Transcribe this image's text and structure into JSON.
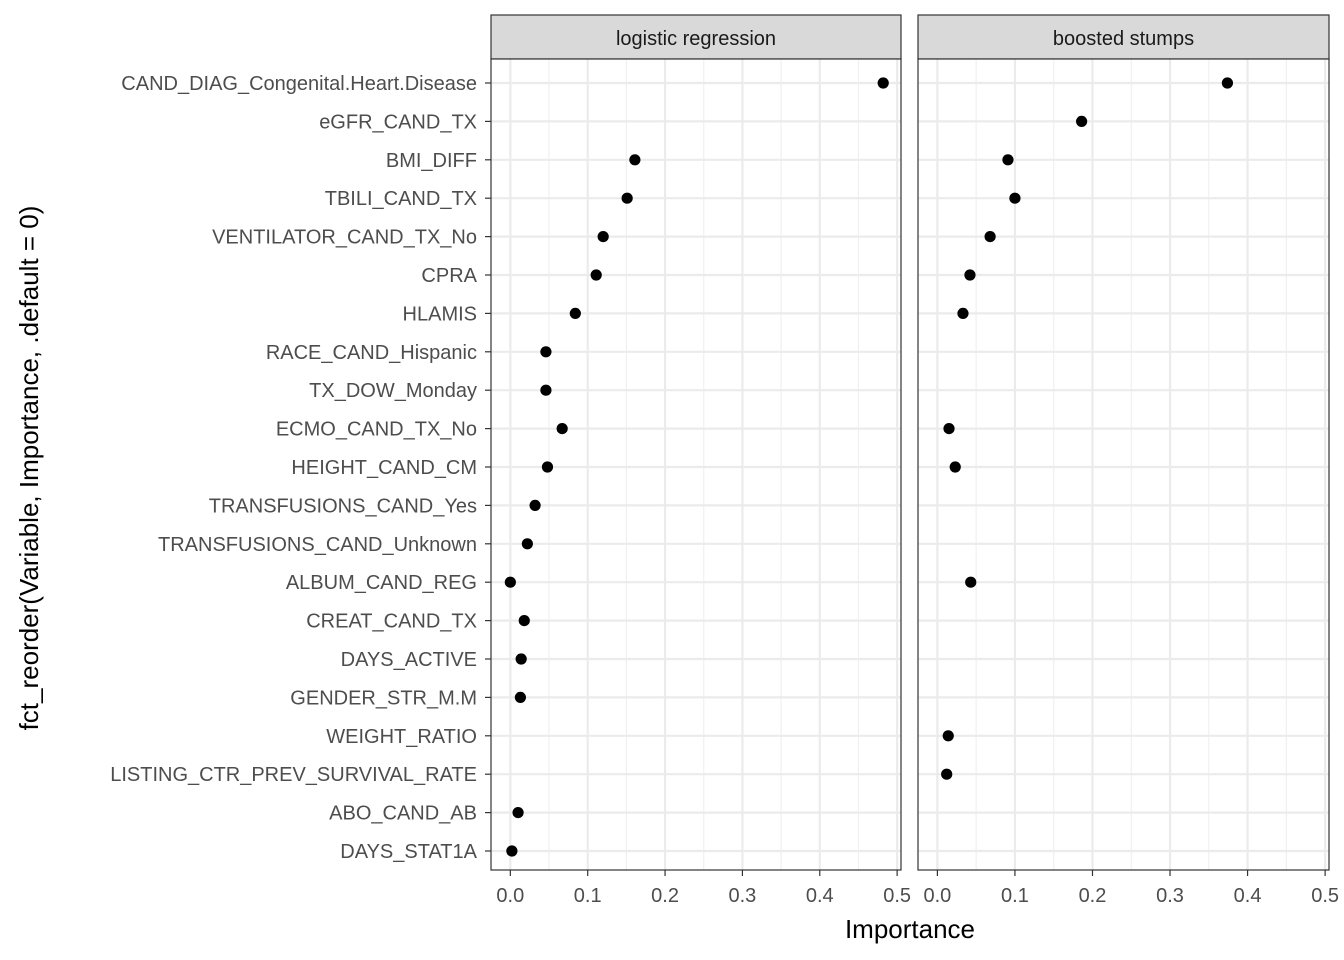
{
  "chart_data": {
    "type": "scatter",
    "xlabel": "Importance",
    "ylabel": "fct_reorder(Variable, Importance, .default = 0)",
    "xlim": [
      -0.025,
      0.505
    ],
    "x_ticks": [
      "0.0",
      "0.1",
      "0.2",
      "0.3",
      "0.4",
      "0.5"
    ],
    "grid": true,
    "categories": [
      "CAND_DIAG_Congenital.Heart.Disease",
      "eGFR_CAND_TX",
      "BMI_DIFF",
      "TBILI_CAND_TX",
      "VENTILATOR_CAND_TX_No",
      "CPRA",
      "HLAMIS",
      "RACE_CAND_Hispanic",
      "TX_DOW_Monday",
      "ECMO_CAND_TX_No",
      "HEIGHT_CAND_CM",
      "TRANSFUSIONS_CAND_Yes",
      "TRANSFUSIONS_CAND_Unknown",
      "ALBUM_CAND_REG",
      "CREAT_CAND_TX",
      "DAYS_ACTIVE",
      "GENDER_STR_M.M",
      "WEIGHT_RATIO",
      "LISTING_CTR_PREV_SURVIVAL_RATE",
      "ABO_CAND_AB",
      "DAYS_STAT1A"
    ],
    "panels": [
      {
        "name": "logistic regression",
        "values": [
          0.482,
          null,
          0.161,
          0.151,
          0.12,
          0.111,
          0.084,
          0.046,
          0.046,
          0.067,
          0.048,
          0.032,
          0.022,
          0.0,
          0.018,
          0.014,
          0.013,
          null,
          null,
          0.01,
          0.002
        ]
      },
      {
        "name": "boosted stumps",
        "values": [
          0.374,
          0.186,
          0.091,
          0.1,
          0.068,
          0.042,
          0.033,
          null,
          null,
          0.015,
          0.023,
          null,
          null,
          0.043,
          null,
          null,
          null,
          0.014,
          0.012,
          null,
          null
        ]
      }
    ]
  }
}
